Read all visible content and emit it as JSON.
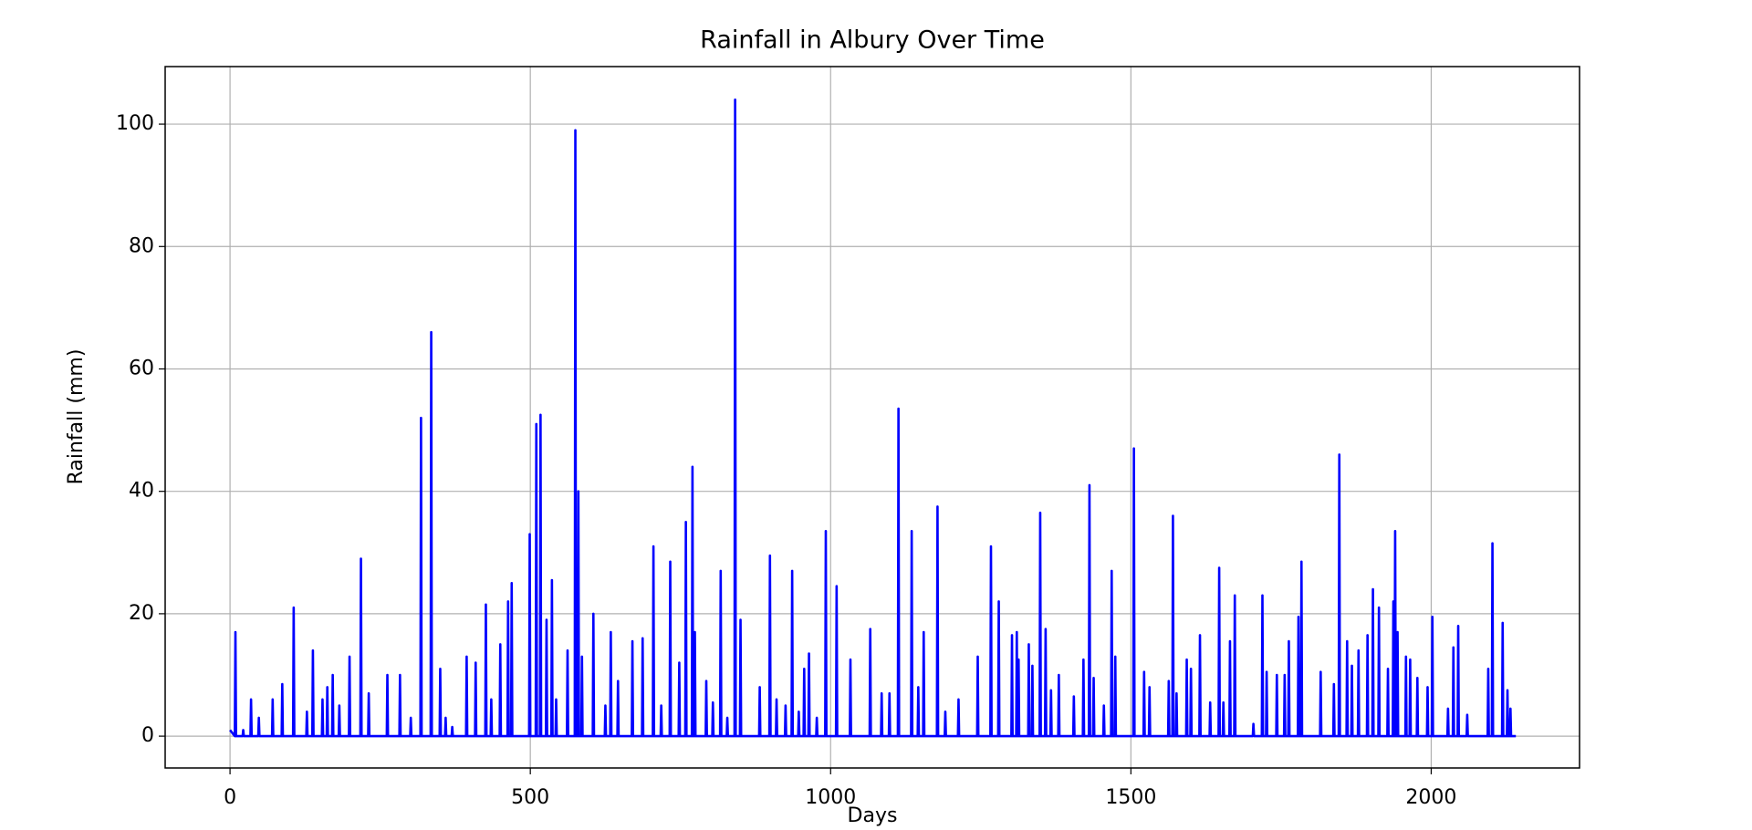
{
  "chart_data": {
    "type": "line",
    "title": "Rainfall in Albury Over Time",
    "x_label": "Days",
    "y_label": "Rainfall (mm)",
    "xlim": [
      -108,
      2247
    ],
    "ylim": [
      -5.2,
      109.4
    ],
    "xticks": [
      0,
      500,
      1000,
      1500,
      2000
    ],
    "yticks": [
      0,
      20,
      40,
      60,
      80,
      100
    ],
    "grid": true,
    "series": [
      {
        "color": "#0000ff",
        "x": [
          0,
          8,
          9,
          10,
          21,
          22,
          23,
          34,
          35,
          36,
          47,
          48,
          49,
          70,
          71,
          72,
          86,
          87,
          88,
          105,
          106,
          107,
          127,
          128,
          129,
          137,
          138,
          139,
          153,
          154,
          155,
          161,
          162,
          163,
          170,
          171,
          172,
          181,
          182,
          183,
          198,
          199,
          200,
          217,
          218,
          219,
          230,
          231,
          232,
          261,
          262,
          263,
          282,
          283,
          284,
          300,
          301,
          302,
          317,
          318,
          319,
          334,
          335,
          336,
          349,
          350,
          351,
          358,
          359,
          360,
          369,
          370,
          371,
          393,
          394,
          395,
          408,
          409,
          410,
          425,
          426,
          427,
          434,
          435,
          436,
          449,
          450,
          451,
          462,
          463,
          464,
          468,
          469,
          470,
          498,
          499,
          500,
          509,
          510,
          511,
          516,
          517,
          518,
          526,
          527,
          528,
          535,
          536,
          537,
          542,
          543,
          544,
          561,
          562,
          563,
          574,
          575,
          576,
          579,
          580,
          581,
          585,
          586,
          587,
          604,
          605,
          606,
          624,
          625,
          626,
          633,
          634,
          635,
          645,
          646,
          647,
          669,
          670,
          671,
          686,
          687,
          688,
          704,
          705,
          706,
          717,
          718,
          719,
          732,
          733,
          734,
          747,
          748,
          749,
          758,
          759,
          760,
          769,
          770,
          771,
          773,
          774,
          775,
          792,
          793,
          794,
          803,
          804,
          805,
          816,
          817,
          818,
          827,
          828,
          829,
          840,
          841,
          842,
          849,
          850,
          851,
          881,
          882,
          883,
          898,
          899,
          900,
          909,
          910,
          911,
          924,
          925,
          926,
          935,
          936,
          937,
          946,
          947,
          948,
          955,
          956,
          957,
          963,
          964,
          965,
          976,
          977,
          978,
          991,
          992,
          993,
          1009,
          1010,
          1011,
          1032,
          1033,
          1034,
          1065,
          1066,
          1067,
          1084,
          1085,
          1086,
          1097,
          1098,
          1099,
          1112,
          1113,
          1114,
          1134,
          1135,
          1136,
          1145,
          1146,
          1147,
          1154,
          1155,
          1156,
          1177,
          1178,
          1179,
          1190,
          1191,
          1192,
          1212,
          1213,
          1214,
          1244,
          1245,
          1246,
          1266,
          1267,
          1268,
          1279,
          1280,
          1281,
          1301,
          1302,
          1303,
          1309,
          1310,
          1311,
          1312,
          1313,
          1314,
          1329,
          1330,
          1331,
          1335,
          1336,
          1337,
          1348,
          1349,
          1350,
          1357,
          1358,
          1359,
          1366,
          1367,
          1368,
          1379,
          1380,
          1381,
          1404,
          1405,
          1406,
          1420,
          1421,
          1422,
          1430,
          1431,
          1432,
          1437,
          1438,
          1439,
          1454,
          1455,
          1456,
          1467,
          1468,
          1469,
          1473,
          1474,
          1475,
          1504,
          1505,
          1506,
          1521,
          1522,
          1523,
          1530,
          1531,
          1532,
          1562,
          1563,
          1564,
          1569,
          1570,
          1571,
          1575,
          1576,
          1577,
          1592,
          1593,
          1594,
          1599,
          1600,
          1601,
          1614,
          1615,
          1616,
          1631,
          1632,
          1633,
          1646,
          1647,
          1648,
          1653,
          1654,
          1655,
          1664,
          1665,
          1666,
          1672,
          1673,
          1674,
          1703,
          1704,
          1705,
          1718,
          1719,
          1720,
          1725,
          1726,
          1727,
          1742,
          1743,
          1744,
          1755,
          1756,
          1757,
          1762,
          1763,
          1764,
          1778,
          1779,
          1780,
          1783,
          1784,
          1785,
          1815,
          1816,
          1817,
          1837,
          1838,
          1839,
          1846,
          1847,
          1848,
          1859,
          1860,
          1861,
          1867,
          1868,
          1869,
          1878,
          1879,
          1880,
          1893,
          1894,
          1895,
          1902,
          1903,
          1904,
          1912,
          1913,
          1914,
          1927,
          1928,
          1929,
          1936,
          1937,
          1938,
          1939,
          1940,
          1941,
          1943,
          1944,
          1945,
          1957,
          1958,
          1959,
          1964,
          1965,
          1966,
          1976,
          1977,
          1978,
          1993,
          1994,
          1995,
          2001,
          2002,
          2003,
          2027,
          2028,
          2029,
          2036,
          2037,
          2038,
          2044,
          2045,
          2046,
          2059,
          2060,
          2061,
          2094,
          2095,
          2096,
          2101,
          2102,
          2103,
          2118,
          2119,
          2120,
          2126,
          2127,
          2128,
          2131,
          2132,
          2133,
          2141
        ],
        "values": [
          1,
          0,
          17,
          0,
          0,
          1,
          0,
          0,
          6,
          0,
          0,
          3,
          0,
          0,
          6,
          0,
          0,
          8.5,
          0,
          0,
          21,
          0,
          0,
          4,
          0,
          0,
          14,
          0,
          0,
          6,
          0,
          0,
          8,
          0,
          0,
          10,
          0,
          0,
          5,
          0,
          0,
          13,
          0,
          0,
          29,
          0,
          0,
          7,
          0,
          0,
          10,
          0,
          0,
          10,
          0,
          0,
          3,
          0,
          0,
          52,
          0,
          0,
          66,
          0,
          0,
          11,
          0,
          0,
          3,
          0,
          0,
          1.5,
          0,
          0,
          13,
          0,
          0,
          12,
          0,
          0,
          21.5,
          0,
          0,
          6,
          0,
          0,
          15,
          0,
          0,
          22,
          0,
          0,
          25,
          0,
          0,
          33,
          0,
          0,
          51,
          0,
          0,
          52.5,
          0,
          0,
          19,
          0,
          0,
          25.5,
          0,
          0,
          6,
          0,
          0,
          14,
          0,
          0,
          99,
          0,
          0,
          40,
          0,
          0,
          13,
          0,
          0,
          20,
          0,
          0,
          5,
          0,
          0,
          17,
          0,
          0,
          9,
          0,
          0,
          15.5,
          0,
          0,
          16,
          0,
          0,
          31,
          0,
          0,
          5,
          0,
          0,
          28.5,
          0,
          0,
          12,
          0,
          0,
          35,
          0,
          0,
          44,
          0,
          0,
          17,
          0,
          0,
          9,
          0,
          0,
          5.5,
          0,
          0,
          27,
          0,
          0,
          3,
          0,
          0,
          104,
          0,
          0,
          19,
          0,
          0,
          8,
          0,
          0,
          29.5,
          0,
          0,
          6,
          0,
          0,
          5,
          0,
          0,
          27,
          0,
          0,
          4,
          0,
          0,
          11,
          0,
          0,
          13.5,
          0,
          0,
          3,
          0,
          0,
          33.5,
          0,
          0,
          24.5,
          0,
          0,
          12.5,
          0,
          0,
          17.5,
          0,
          0,
          7,
          0,
          0,
          7,
          0,
          0,
          53.5,
          0,
          0,
          33.5,
          0,
          0,
          8,
          0,
          0,
          17,
          0,
          0,
          37.5,
          0,
          0,
          4,
          0,
          0,
          6,
          0,
          0,
          13,
          0,
          0,
          31,
          0,
          0,
          22,
          0,
          0,
          16.5,
          0,
          0,
          17,
          0,
          0,
          12.5,
          0,
          0,
          15,
          0,
          0,
          11.5,
          0,
          0,
          36.5,
          0,
          0,
          17.5,
          0,
          0,
          7.5,
          0,
          0,
          10,
          0,
          0,
          6.5,
          0,
          0,
          12.5,
          0,
          0,
          41,
          0,
          0,
          9.5,
          0,
          0,
          5,
          0,
          0,
          27,
          0,
          0,
          13,
          0,
          0,
          47,
          0,
          0,
          10.5,
          0,
          0,
          8,
          0,
          0,
          9,
          0,
          0,
          36,
          0,
          0,
          7,
          0,
          0,
          12.5,
          0,
          0,
          11,
          0,
          0,
          16.5,
          0,
          0,
          5.5,
          0,
          0,
          27.5,
          0,
          0,
          5.5,
          0,
          0,
          15.5,
          0,
          0,
          23,
          0,
          0,
          2,
          0,
          0,
          23,
          0,
          0,
          10.5,
          0,
          0,
          10,
          0,
          0,
          10,
          0,
          0,
          15.5,
          0,
          0,
          19.5,
          0,
          0,
          28.5,
          0,
          0,
          10.5,
          0,
          0,
          8.5,
          0,
          0,
          46,
          0,
          0,
          15.5,
          0,
          0,
          11.5,
          0,
          0,
          14,
          0,
          0,
          16.5,
          0,
          0,
          24,
          0,
          0,
          21,
          0,
          0,
          11,
          0,
          0,
          22,
          0,
          0,
          33.5,
          0,
          0,
          17,
          0,
          0,
          13,
          0,
          0,
          12.5,
          0,
          0,
          9.5,
          0,
          0,
          8,
          0,
          0,
          19.5,
          0,
          0,
          4.5,
          0,
          0,
          14.5,
          0,
          0,
          18,
          0,
          0,
          3.5,
          0,
          0,
          11,
          0,
          0,
          31.5,
          0,
          0,
          18.5,
          0,
          0,
          7.5,
          0,
          0,
          4.5,
          0,
          0
        ]
      }
    ]
  }
}
